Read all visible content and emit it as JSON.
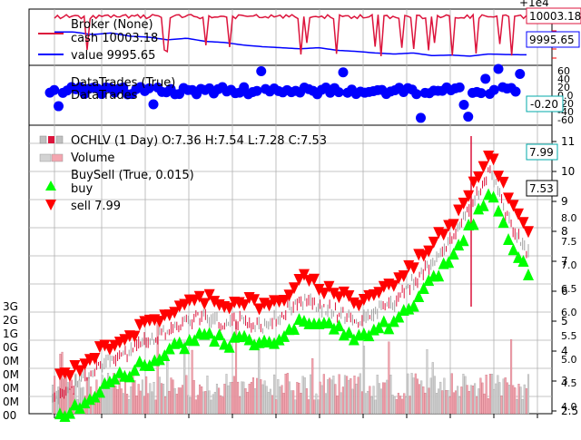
{
  "offset_label": "+1e4",
  "panels": {
    "broker": {
      "legend_title": "Broker (None)",
      "cash_label": "cash 10003.18",
      "value_label": "value 9995.65",
      "cash_last": "10003.18",
      "value_last": "9995.65",
      "colors": {
        "cash": "#dc143c",
        "value": "#0000ff"
      }
    },
    "trades": {
      "legend_title": "DataTrades (True)",
      "legend_sub": "DataTrades",
      "last_label": "-0.20",
      "color": "#0000ff",
      "yticks": [
        "60",
        "40",
        "20",
        "0.0",
        "-20",
        "-40",
        "-60"
      ]
    },
    "main": {
      "ohlc_label": "OCHLV (1 Day) O:7.36 H:7.54 L:7.28 C:7.53",
      "volume_label": "Volume",
      "buysell_title": "BuySell (True, 0.015)",
      "buy_label": "buy",
      "sell_label": "sell 7.99",
      "last_sell": "7.99",
      "last_close": "7.53",
      "right_ticks": [
        "11",
        "10",
        "9",
        "8",
        "7",
        "6",
        "5",
        "4",
        "3",
        "2.5"
      ],
      "right_ticks_b": [
        "8.0",
        "7.5",
        "7.0",
        "6.5",
        "6.0",
        "5.5",
        "5.0",
        "4.5",
        "4.0"
      ],
      "left_ticks": [
        "3G",
        "2G",
        "1G",
        "0G",
        "0M",
        "0M",
        "0M",
        "0M",
        "00"
      ],
      "colors": {
        "buy": "#00ff00",
        "sell": "#ff0000",
        "up_bar": "#c0c0c0",
        "down_bar": "#dc143c",
        "volume_up": "#d3d3d3",
        "volume_down": "#f4a6b0"
      }
    }
  },
  "chart_data": {
    "type": "line",
    "x": [
      0,
      10,
      20,
      30,
      40,
      50,
      60,
      70,
      80,
      90,
      100,
      110,
      120,
      130,
      140,
      150,
      160,
      170,
      180,
      190,
      200,
      210,
      220,
      230,
      240,
      250
    ],
    "series": [
      {
        "name": "cash 10003.18",
        "values": [
          10000,
          10001,
          9998,
          10000,
          9999,
          10002,
          9997,
          10000,
          10001,
          9999,
          9998,
          10002,
          10003,
          10001,
          9997,
          10002,
          9998,
          10003,
          9996,
          10003,
          10002,
          9997,
          10002,
          10003,
          10003,
          10003.18
        ]
      },
      {
        "name": "value 9995.65",
        "values": [
          10000,
          10000,
          9999.5,
          9999.8,
          9999.2,
          9999,
          9998.5,
          9998.8,
          9998.2,
          9998,
          9997.5,
          9997.2,
          9997,
          9996.8,
          9997,
          9996.5,
          9996.3,
          9996,
          9995.8,
          9996,
          9995.5,
          9995.6,
          9995.4,
          9995.8,
          9995.7,
          9995.65
        ]
      },
      {
        "name": "OCHLV close",
        "values": [
          2.7,
          3.0,
          3.5,
          3.9,
          4.2,
          4.6,
          4.9,
          5.2,
          5.4,
          5.1,
          5.3,
          5.0,
          5.4,
          6.0,
          5.7,
          5.5,
          5.2,
          5.6,
          5.9,
          6.6,
          7.3,
          8.0,
          9.2,
          10.3,
          8.6,
          7.53
        ]
      }
    ],
    "title": "",
    "xlabel": "",
    "ylabel": "",
    "grid": true
  }
}
